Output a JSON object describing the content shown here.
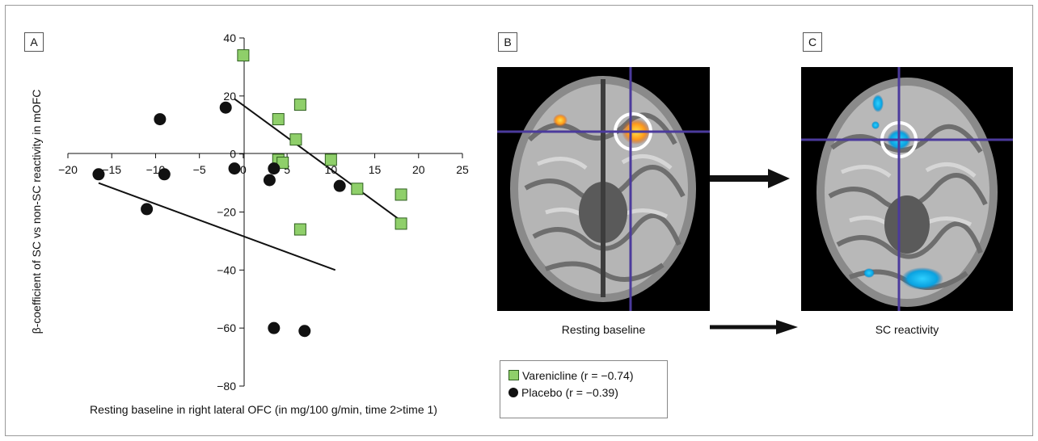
{
  "panels": {
    "a_label": "A",
    "b_label": "B",
    "c_label": "C",
    "b_caption": "Resting baseline",
    "c_caption": "SC reactivity"
  },
  "legend": {
    "varenicline": {
      "name": "Varenicline",
      "r": "(r = −0.74)"
    },
    "placebo": {
      "name": "Placebo",
      "r": "(r = −0.39)"
    }
  },
  "chart_data": {
    "type": "scatter",
    "xlabel": "Resting baseline in right lateral OFC (in mg/100 g/min, time 2>time 1)",
    "ylabel": "β-coefficient of SC vs non-SC reactivity in mOFC",
    "xlim": [
      -20,
      25
    ],
    "ylim": [
      -80,
      40
    ],
    "xticks": [
      -20,
      -15,
      -10,
      -5,
      0,
      5,
      10,
      15,
      20,
      25
    ],
    "yticks": [
      40,
      20,
      0,
      -20,
      -40,
      -60,
      -80
    ],
    "xtick_labels": [
      "−20",
      "−15",
      "−10",
      "−5",
      "0",
      "5",
      "10",
      "15",
      "20",
      "25"
    ],
    "ytick_labels": [
      "40",
      "20",
      "0",
      "−20",
      "−40",
      "−60",
      "−80"
    ],
    "series": [
      {
        "name": "Varenicline",
        "marker": "square",
        "color": "#8fcf6a",
        "points": [
          [
            0,
            34
          ],
          [
            4,
            12
          ],
          [
            6.5,
            17
          ],
          [
            6,
            5
          ],
          [
            4,
            -2
          ],
          [
            4.5,
            -3
          ],
          [
            10,
            -2
          ],
          [
            13,
            -12
          ],
          [
            18,
            -14
          ],
          [
            6.5,
            -26
          ],
          [
            18,
            -24
          ]
        ],
        "fit": [
          [
            -1,
            19
          ],
          [
            18,
            -23
          ]
        ]
      },
      {
        "name": "Placebo",
        "marker": "circle",
        "color": "#111111",
        "points": [
          [
            -2,
            16
          ],
          [
            -9.5,
            12
          ],
          [
            -1,
            -5
          ],
          [
            -16.5,
            -7
          ],
          [
            -9,
            -7
          ],
          [
            3,
            -9
          ],
          [
            3.5,
            -5
          ],
          [
            11,
            -11
          ],
          [
            -11,
            -19
          ],
          [
            3.5,
            -60
          ],
          [
            7,
            -61
          ]
        ],
        "fit": [
          [
            -16.5,
            -10
          ],
          [
            10.5,
            -40
          ]
        ]
      }
    ]
  }
}
